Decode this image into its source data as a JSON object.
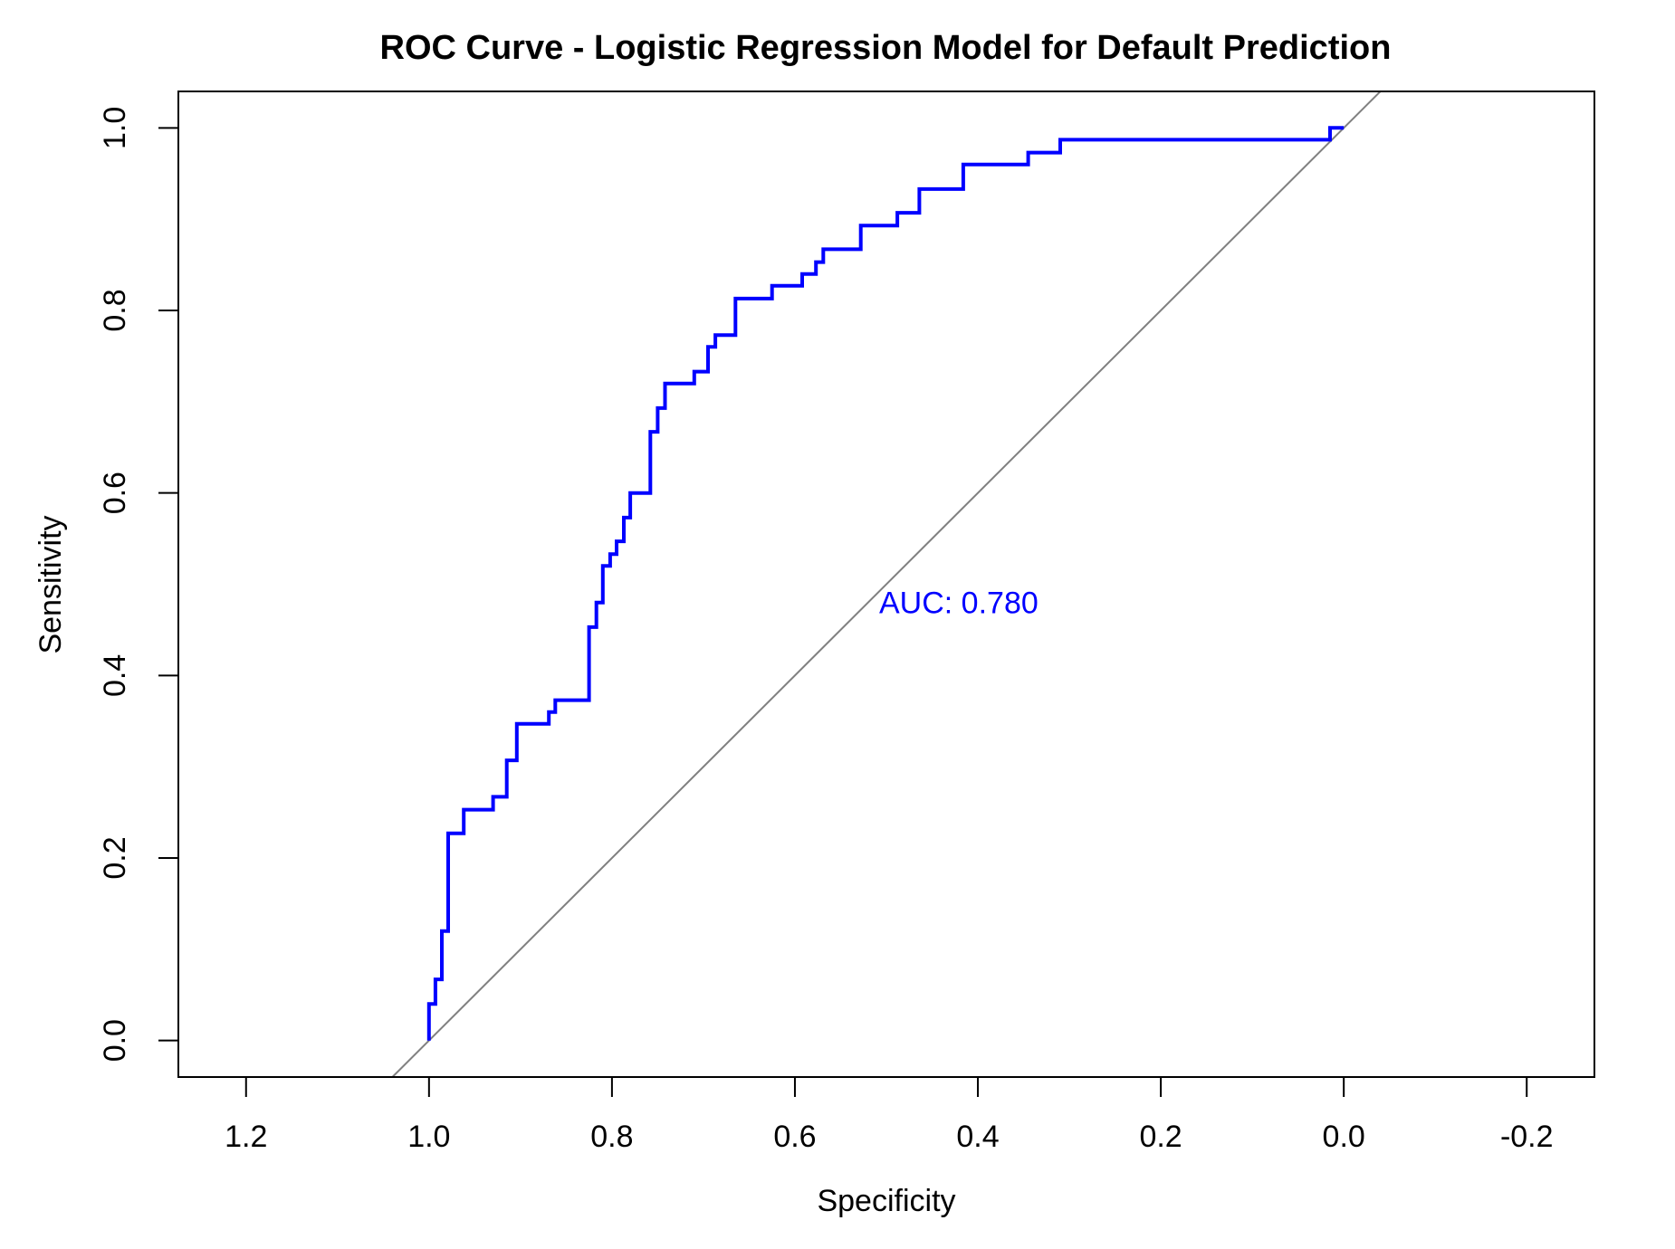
{
  "chart_data": {
    "type": "line",
    "title": "ROC Curve - Logistic Regression Model for Default Prediction",
    "xlabel": "Specificity",
    "ylabel": "Sensitivity",
    "xlim": [
      1.274,
      -0.274
    ],
    "ylim": [
      -0.04,
      1.04
    ],
    "x_reversed": true,
    "x_ticks": [
      1.2,
      1.0,
      0.8,
      0.6,
      0.4,
      0.2,
      0.0,
      -0.2
    ],
    "x_tick_labels": [
      "1.2",
      "1.0",
      "0.8",
      "0.6",
      "0.4",
      "0.2",
      "0.0",
      "-0.2"
    ],
    "y_ticks": [
      0.0,
      0.2,
      0.4,
      0.6,
      0.8,
      1.0
    ],
    "y_tick_labels": [
      "0.0",
      "0.2",
      "0.4",
      "0.6",
      "0.8",
      "1.0"
    ],
    "grid": false,
    "legend": "none",
    "annotation": {
      "text": "AUC: 0.780",
      "x": 0.5,
      "y": 0.48
    },
    "series": [
      {
        "color": "#0000ff",
        "points": [
          [
            1.0,
            0.0
          ],
          [
            1.0,
            0.04
          ],
          [
            0.993,
            0.04
          ],
          [
            0.993,
            0.067
          ],
          [
            0.986,
            0.067
          ],
          [
            0.986,
            0.12
          ],
          [
            0.979,
            0.12
          ],
          [
            0.979,
            0.227
          ],
          [
            0.962,
            0.227
          ],
          [
            0.962,
            0.253
          ],
          [
            0.93,
            0.253
          ],
          [
            0.93,
            0.267
          ],
          [
            0.915,
            0.267
          ],
          [
            0.915,
            0.307
          ],
          [
            0.904,
            0.307
          ],
          [
            0.904,
            0.347
          ],
          [
            0.869,
            0.347
          ],
          [
            0.869,
            0.36
          ],
          [
            0.862,
            0.36
          ],
          [
            0.862,
            0.373
          ],
          [
            0.825,
            0.373
          ],
          [
            0.825,
            0.453
          ],
          [
            0.817,
            0.453
          ],
          [
            0.817,
            0.48
          ],
          [
            0.81,
            0.48
          ],
          [
            0.81,
            0.52
          ],
          [
            0.802,
            0.52
          ],
          [
            0.802,
            0.533
          ],
          [
            0.795,
            0.533
          ],
          [
            0.795,
            0.547
          ],
          [
            0.787,
            0.547
          ],
          [
            0.787,
            0.573
          ],
          [
            0.78,
            0.573
          ],
          [
            0.78,
            0.6
          ],
          [
            0.758,
            0.6
          ],
          [
            0.758,
            0.667
          ],
          [
            0.75,
            0.667
          ],
          [
            0.75,
            0.693
          ],
          [
            0.742,
            0.693
          ],
          [
            0.742,
            0.72
          ],
          [
            0.71,
            0.72
          ],
          [
            0.71,
            0.733
          ],
          [
            0.695,
            0.733
          ],
          [
            0.695,
            0.76
          ],
          [
            0.687,
            0.76
          ],
          [
            0.687,
            0.773
          ],
          [
            0.665,
            0.773
          ],
          [
            0.665,
            0.813
          ],
          [
            0.625,
            0.813
          ],
          [
            0.625,
            0.827
          ],
          [
            0.592,
            0.827
          ],
          [
            0.592,
            0.84
          ],
          [
            0.577,
            0.84
          ],
          [
            0.577,
            0.853
          ],
          [
            0.569,
            0.853
          ],
          [
            0.569,
            0.867
          ],
          [
            0.528,
            0.867
          ],
          [
            0.528,
            0.893
          ],
          [
            0.488,
            0.893
          ],
          [
            0.488,
            0.907
          ],
          [
            0.464,
            0.907
          ],
          [
            0.464,
            0.933
          ],
          [
            0.416,
            0.933
          ],
          [
            0.416,
            0.96
          ],
          [
            0.345,
            0.96
          ],
          [
            0.345,
            0.973
          ],
          [
            0.31,
            0.973
          ],
          [
            0.31,
            0.987
          ],
          [
            0.015,
            0.987
          ],
          [
            0.015,
            1.0
          ],
          [
            0.0,
            1.0
          ]
        ]
      },
      {
        "color": "#808080",
        "points": [
          [
            1.04,
            -0.04
          ],
          [
            -0.04,
            1.04
          ]
        ]
      }
    ]
  }
}
